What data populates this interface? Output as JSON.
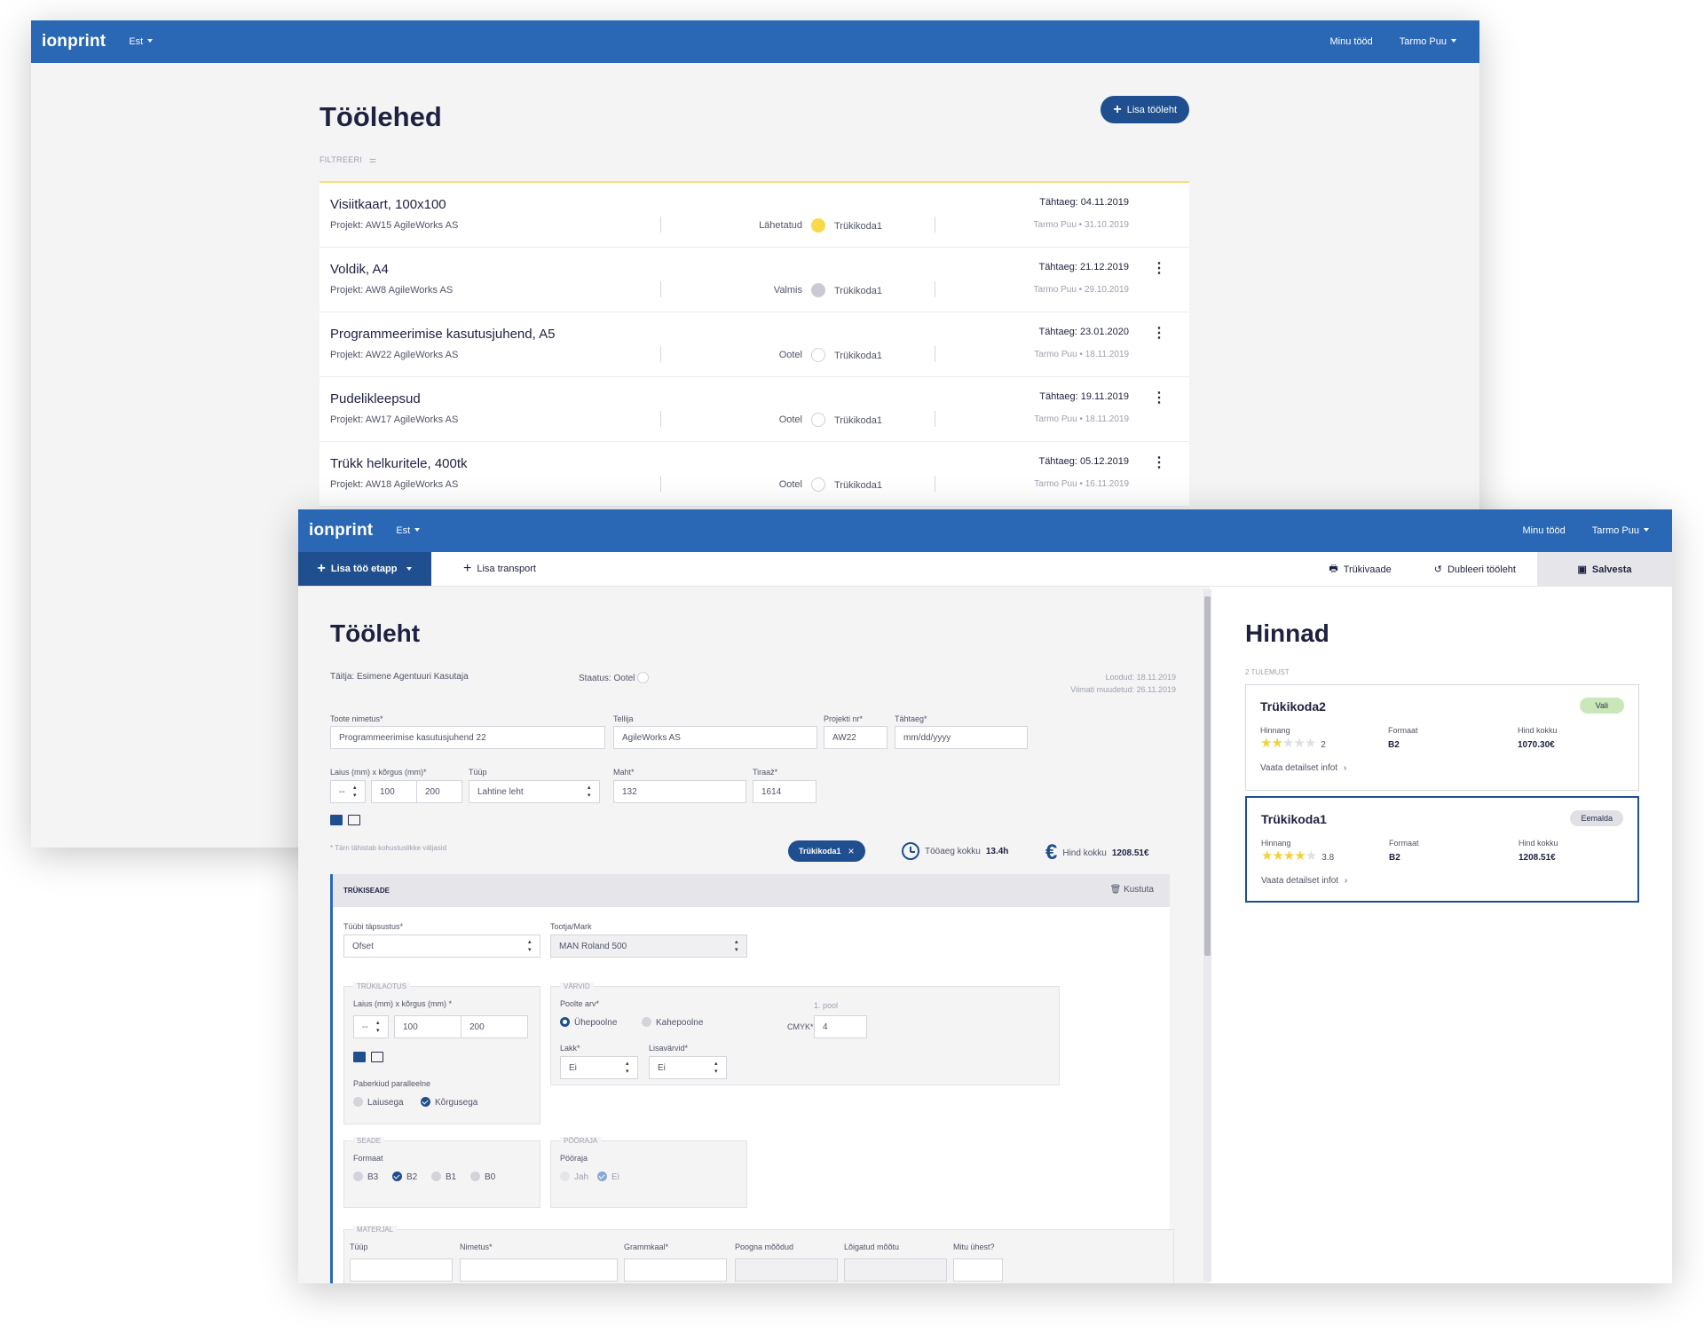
{
  "w1": {
    "logo": "ionprint",
    "lang": "Est",
    "my_jobs": "Minu tööd",
    "user": "Tarmo Puu",
    "title": "Töölehed",
    "add_label": "Lisa tööleht",
    "filter_label": "FILTREERI",
    "rows": [
      {
        "title": "Visiitkaart, 100x100",
        "project": "Projekt: AW15 AgileWorks AS",
        "status": "Lähetatud",
        "status_dot": "yellow",
        "printer": "Trükikoda1",
        "deadline": "Tähtaeg: 04.11.2019",
        "meta": "Tarmo Puu • 31.10.2019"
      },
      {
        "title": "Voldik, A4",
        "project": "Projekt: AW8 AgileWorks AS",
        "status": "Valmis",
        "status_dot": "grey",
        "printer": "Trükikoda1",
        "deadline": "Tähtaeg: 21.12.2019",
        "meta": "Tarmo Puu • 29.10.2019"
      },
      {
        "title": "Programmeerimise kasutusjuhend, A5",
        "project": "Projekt: AW22 AgileWorks AS",
        "status": "Ootel",
        "status_dot": "empty",
        "printer": "Trükikoda1",
        "deadline": "Tähtaeg: 23.01.2020",
        "meta": "Tarmo Puu • 18.11.2019"
      },
      {
        "title": "Pudelikleepsud",
        "project": "Projekt: AW17 AgileWorks AS",
        "status": "Ootel",
        "status_dot": "empty",
        "printer": "Trükikoda1",
        "deadline": "Tähtaeg: 19.11.2019",
        "meta": "Tarmo Puu • 18.11.2019"
      },
      {
        "title": "Trükk helkuritele, 400tk",
        "project": "Projekt: AW18 AgileWorks AS",
        "status": "Ootel",
        "status_dot": "empty",
        "printer": "Trükikoda1",
        "deadline": "Tähtaeg: 05.12.2019",
        "meta": "Tarmo Puu • 16.11.2019"
      }
    ]
  },
  "w2": {
    "logo": "ionprint",
    "lang": "Est",
    "my_jobs": "Minu tööd",
    "user": "Tarmo Puu",
    "toolbar": {
      "add_stage": "Lisa töö etapp",
      "add_transport": "Lisa transport",
      "preview": "Trükivaade",
      "duplicate": "Dubleeri tööleht",
      "save": "Salvesta"
    },
    "title": "Tööleht",
    "executor_label": "Täitja:",
    "executor": "Esimene Agentuuri Kasutaja",
    "status_label": "Staatus:",
    "status": "Ootel",
    "created": "Loodud: 18.11.2019",
    "modified": "Viimati muudetud: 26.11.2019",
    "fields": {
      "product_label": "Toote nimetus*",
      "product": "Programmeerimise kasutusjuhend 22",
      "client_label": "Tellija",
      "client": "AgileWorks AS",
      "project_label": "Projekti nr*",
      "project": "AW22",
      "deadline_label": "Tähtaeg*",
      "deadline_ph": "mm/dd/yyyy",
      "size_label": "Laius (mm) x kõrgus (mm)*",
      "size_sel": "--",
      "width": "100",
      "height": "200",
      "type_label": "Tüüp",
      "type": "Lahtine leht",
      "volume_label": "Maht*",
      "volume": "132",
      "run_label": "Tiraaž*",
      "run": "1614"
    },
    "required_note": "* Tärn tähistab kohustuslikke väljasid",
    "chip": "Trükikoda1",
    "worktime_label": "Tööaeg kokku",
    "worktime": "13.4h",
    "price_label": "Hind kokku",
    "price": "1208.51€",
    "section": {
      "title": "TRÜKISEADE",
      "delete": "Kustuta",
      "type_spec_label": "Tüübi täpsustus*",
      "type_spec": "Ofset",
      "maker_label": "Tootja/Mark",
      "maker": "MAN Roland 500",
      "layout_legend": "TRÜKILAOTUS",
      "layout_size_label": "Laius (mm) x kõrgus (mm) *",
      "layout_sel": "--",
      "layout_w": "100",
      "layout_h": "200",
      "fiber_label": "Paberkiud paralleelne",
      "fiber_opts": [
        "Laiusega",
        "Kõrgusega"
      ],
      "colors_legend": "VÄRVID",
      "sides_label": "Poolte arv*",
      "sides_opts": [
        "Ühepoolne",
        "Kahepoolne"
      ],
      "side1": "1. pool",
      "cmyk_label": "CMYK*",
      "cmyk": "4",
      "lacquer_label": "Lakk*",
      "lacquer": "Ei",
      "extra_label": "Lisavärvid*",
      "extra": "Ei",
      "device_legend": "SEADE",
      "format_label": "Formaat",
      "formats": [
        "B3",
        "B2",
        "B1",
        "B0"
      ],
      "turner_legend": "PÖÖRAJA",
      "turner_label": "Pööraja",
      "turner_opts": [
        "Jah",
        "Ei"
      ],
      "material_legend": "MATERJAL",
      "material_cols": [
        "Tüüp",
        "Nimetus*",
        "Grammkaal*",
        "Poogna mõõdud",
        "Lõigatud mõõtu",
        "Mitu ühest?"
      ]
    },
    "prices": {
      "title": "Hinnad",
      "count": "2 TULEMUST",
      "cards": [
        {
          "name": "Trükikoda2",
          "action": "Vali",
          "rating_label": "Hinnang",
          "rating": "2",
          "stars": 2,
          "format_label": "Formaat",
          "format": "B2",
          "total_label": "Hind kokku",
          "total": "1070.30€",
          "details": "Vaata detailset infot"
        },
        {
          "name": "Trükikoda1",
          "action": "Eemalda",
          "rating_label": "Hinnang",
          "rating": "3.8",
          "stars": 4,
          "format_label": "Formaat",
          "format": "B2",
          "total_label": "Hind kokku",
          "total": "1208.51€",
          "details": "Vaata detailset infot"
        }
      ]
    }
  },
  "colors": {
    "primary": "#2a68b6",
    "dark_blue": "#1f4f8f",
    "yellow": "#f9d94a",
    "green": "#c9e7b8"
  }
}
